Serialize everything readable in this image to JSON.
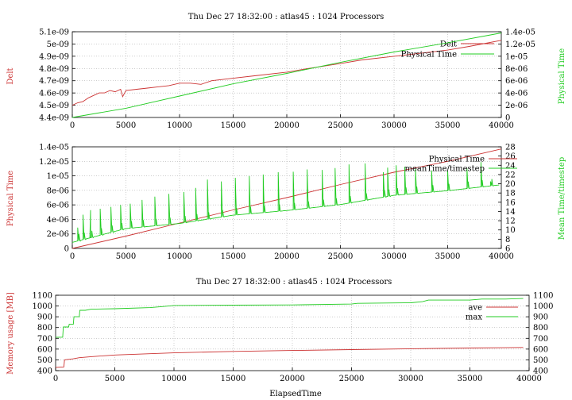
{
  "colors": {
    "red": "#cc3333",
    "green": "#22cc22",
    "axis": "#000000",
    "grid": "#b0b0b0"
  },
  "chart_data": [
    {
      "type": "line",
      "title": "Thu Dec 27 18:32:00 : atlas45 : 1024 Processors",
      "ylabel": "Delt",
      "y2label": "Physical Time",
      "xlim": [
        0,
        40000
      ],
      "ylim": [
        4.4e-09,
        5.1e-09
      ],
      "y2lim": [
        0,
        1.4e-05
      ],
      "xticks": [
        "0",
        "5000",
        "10000",
        "15000",
        "20000",
        "25000",
        "30000",
        "35000",
        "40000"
      ],
      "yticks": [
        "4.4e-09",
        "4.5e-09",
        "4.6e-09",
        "4.7e-09",
        "4.8e-09",
        "4.9e-09",
        "5e-09",
        "5.1e-09"
      ],
      "y2ticks": [
        "0",
        "2e-06",
        "4e-06",
        "6e-06",
        "8e-06",
        "1e-05",
        "1.2e-05",
        "1.4e-05"
      ],
      "grid": true,
      "legend": "top-right",
      "series": [
        {
          "name": "Delt",
          "axis": "y",
          "color": "red",
          "x": [
            0,
            500,
            1000,
            1500,
            2000,
            2500,
            3000,
            3500,
            4000,
            4500,
            4700,
            5000,
            6000,
            7000,
            8000,
            9000,
            10000,
            11000,
            12000,
            13000,
            15000,
            17000,
            20000,
            22000,
            25000,
            27000,
            30000,
            32000,
            35000,
            37000,
            40000
          ],
          "y": [
            4.5e-09,
            4.52e-09,
            4.53e-09,
            4.56e-09,
            4.58e-09,
            4.6e-09,
            4.6e-09,
            4.62e-09,
            4.61e-09,
            4.63e-09,
            4.57e-09,
            4.62e-09,
            4.63e-09,
            4.64e-09,
            4.65e-09,
            4.66e-09,
            4.68e-09,
            4.68e-09,
            4.67e-09,
            4.7e-09,
            4.72e-09,
            4.74e-09,
            4.77e-09,
            4.8e-09,
            4.84e-09,
            4.87e-09,
            4.9e-09,
            4.92e-09,
            4.95e-09,
            4.98e-09,
            5.03e-09
          ]
        },
        {
          "name": "Physical Time",
          "axis": "y2",
          "color": "green",
          "x": [
            0,
            5000,
            10000,
            15000,
            20000,
            25000,
            30000,
            35000,
            40000
          ],
          "y": [
            0,
            1.5e-06,
            3.5e-06,
            5.5e-06,
            7.2e-06,
            9e-06,
            1.07e-05,
            1.22e-05,
            1.38e-05
          ]
        }
      ]
    },
    {
      "type": "line",
      "title": "",
      "ylabel": "Physical Time",
      "y2label": "Mean Time/timestep",
      "xlim": [
        0,
        40000
      ],
      "ylim": [
        0,
        1.4e-05
      ],
      "y2lim": [
        6,
        28
      ],
      "xticks": [
        "0",
        "5000",
        "10000",
        "15000",
        "20000",
        "25000",
        "30000",
        "35000",
        "40000"
      ],
      "yticks": [
        "0",
        "2e-06",
        "4e-06",
        "6e-06",
        "8e-06",
        "1e-05",
        "1.2e-05",
        "1.4e-05"
      ],
      "y2ticks": [
        "6",
        "8",
        "10",
        "12",
        "14",
        "16",
        "18",
        "20",
        "22",
        "24",
        "26",
        "28"
      ],
      "grid": true,
      "legend": "top-right",
      "series": [
        {
          "name": "Physical Time",
          "axis": "y",
          "color": "red",
          "x": [
            0,
            5000,
            10000,
            15000,
            20000,
            25000,
            30000,
            35000,
            40000
          ],
          "y": [
            0,
            1.7e-06,
            3.5e-06,
            5.3e-06,
            7e-06,
            8.8e-06,
            1.05e-05,
            1.2e-05,
            1.37e-05
          ]
        },
        {
          "name": "meanTime/timestep",
          "axis": "y2",
          "color": "green",
          "baseline": [
            [
              0,
              7.3
            ],
            [
              5000,
              10.3
            ],
            [
              10000,
              11.4
            ],
            [
              15000,
              13.2
            ],
            [
              20000,
              14.2
            ],
            [
              25000,
              15.5
            ],
            [
              30000,
              17.5
            ],
            [
              35000,
              18.5
            ],
            [
              40000,
              19.8
            ]
          ],
          "spikes": [
            [
              500,
              10.5
            ],
            [
              1000,
              13.3
            ],
            [
              1700,
              14.3
            ],
            [
              2600,
              14.6
            ],
            [
              3600,
              15.0
            ],
            [
              4500,
              15.4
            ],
            [
              5400,
              15.7
            ],
            [
              6500,
              16.5
            ],
            [
              7700,
              17.2
            ],
            [
              9000,
              17.8
            ],
            [
              10400,
              18.2
            ],
            [
              11500,
              19.1
            ],
            [
              12600,
              20.9
            ],
            [
              13900,
              20.5
            ],
            [
              15200,
              21.3
            ],
            [
              16500,
              21.7
            ],
            [
              17800,
              22.0
            ],
            [
              19200,
              22.5
            ],
            [
              20600,
              22.6
            ],
            [
              21900,
              23.1
            ],
            [
              23300,
              23.0
            ],
            [
              24500,
              23.4
            ],
            [
              25800,
              24.2
            ],
            [
              27300,
              24.4
            ],
            [
              29000,
              22.5
            ],
            [
              29400,
              23.5
            ],
            [
              30200,
              24.0
            ],
            [
              31000,
              23.7
            ],
            [
              32000,
              23.2
            ],
            [
              33500,
              22.9
            ],
            [
              35000,
              22.8
            ],
            [
              36800,
              23.4
            ],
            [
              38100,
              24.7
            ],
            [
              39000,
              20.5
            ]
          ]
        }
      ]
    },
    {
      "type": "line",
      "title": "Thu Dec 27 18:32:00 : atlas45 : 1024 Processors",
      "xlabel": "ElapsedTime",
      "ylabel": "Memory usage [MB]",
      "xlim": [
        0,
        40000
      ],
      "ylim": [
        400,
        1100
      ],
      "y2lim": [
        400,
        1100
      ],
      "xticks": [
        "0",
        "5000",
        "10000",
        "15000",
        "20000",
        "25000",
        "30000",
        "35000",
        "40000"
      ],
      "yticks": [
        "400",
        "500",
        "600",
        "700",
        "800",
        "900",
        "1000",
        "1100"
      ],
      "y2ticks": [
        "400",
        "500",
        "600",
        "700",
        "800",
        "900",
        "1000",
        "1100"
      ],
      "grid": true,
      "legend": "top-right",
      "series": [
        {
          "name": "ave",
          "axis": "y",
          "color": "red",
          "x": [
            0,
            700,
            750,
            1500,
            2000,
            3000,
            5000,
            10000,
            15000,
            20000,
            25000,
            30000,
            35000,
            39500
          ],
          "y": [
            430,
            435,
            500,
            510,
            520,
            530,
            545,
            565,
            578,
            587,
            595,
            603,
            610,
            615
          ]
        },
        {
          "name": "max",
          "axis": "y",
          "color": "green",
          "x": [
            0,
            600,
            650,
            1100,
            1150,
            1500,
            1550,
            2000,
            2050,
            2500,
            3000,
            5000,
            8000,
            9000,
            10000,
            15000,
            20000,
            25000,
            25500,
            30000,
            31000,
            31500,
            35000,
            36000,
            38000,
            39500
          ],
          "y": [
            710,
            710,
            805,
            805,
            830,
            830,
            900,
            900,
            960,
            960,
            970,
            975,
            985,
            995,
            1005,
            1008,
            1010,
            1018,
            1025,
            1030,
            1040,
            1055,
            1055,
            1065,
            1065,
            1070
          ]
        }
      ]
    }
  ]
}
